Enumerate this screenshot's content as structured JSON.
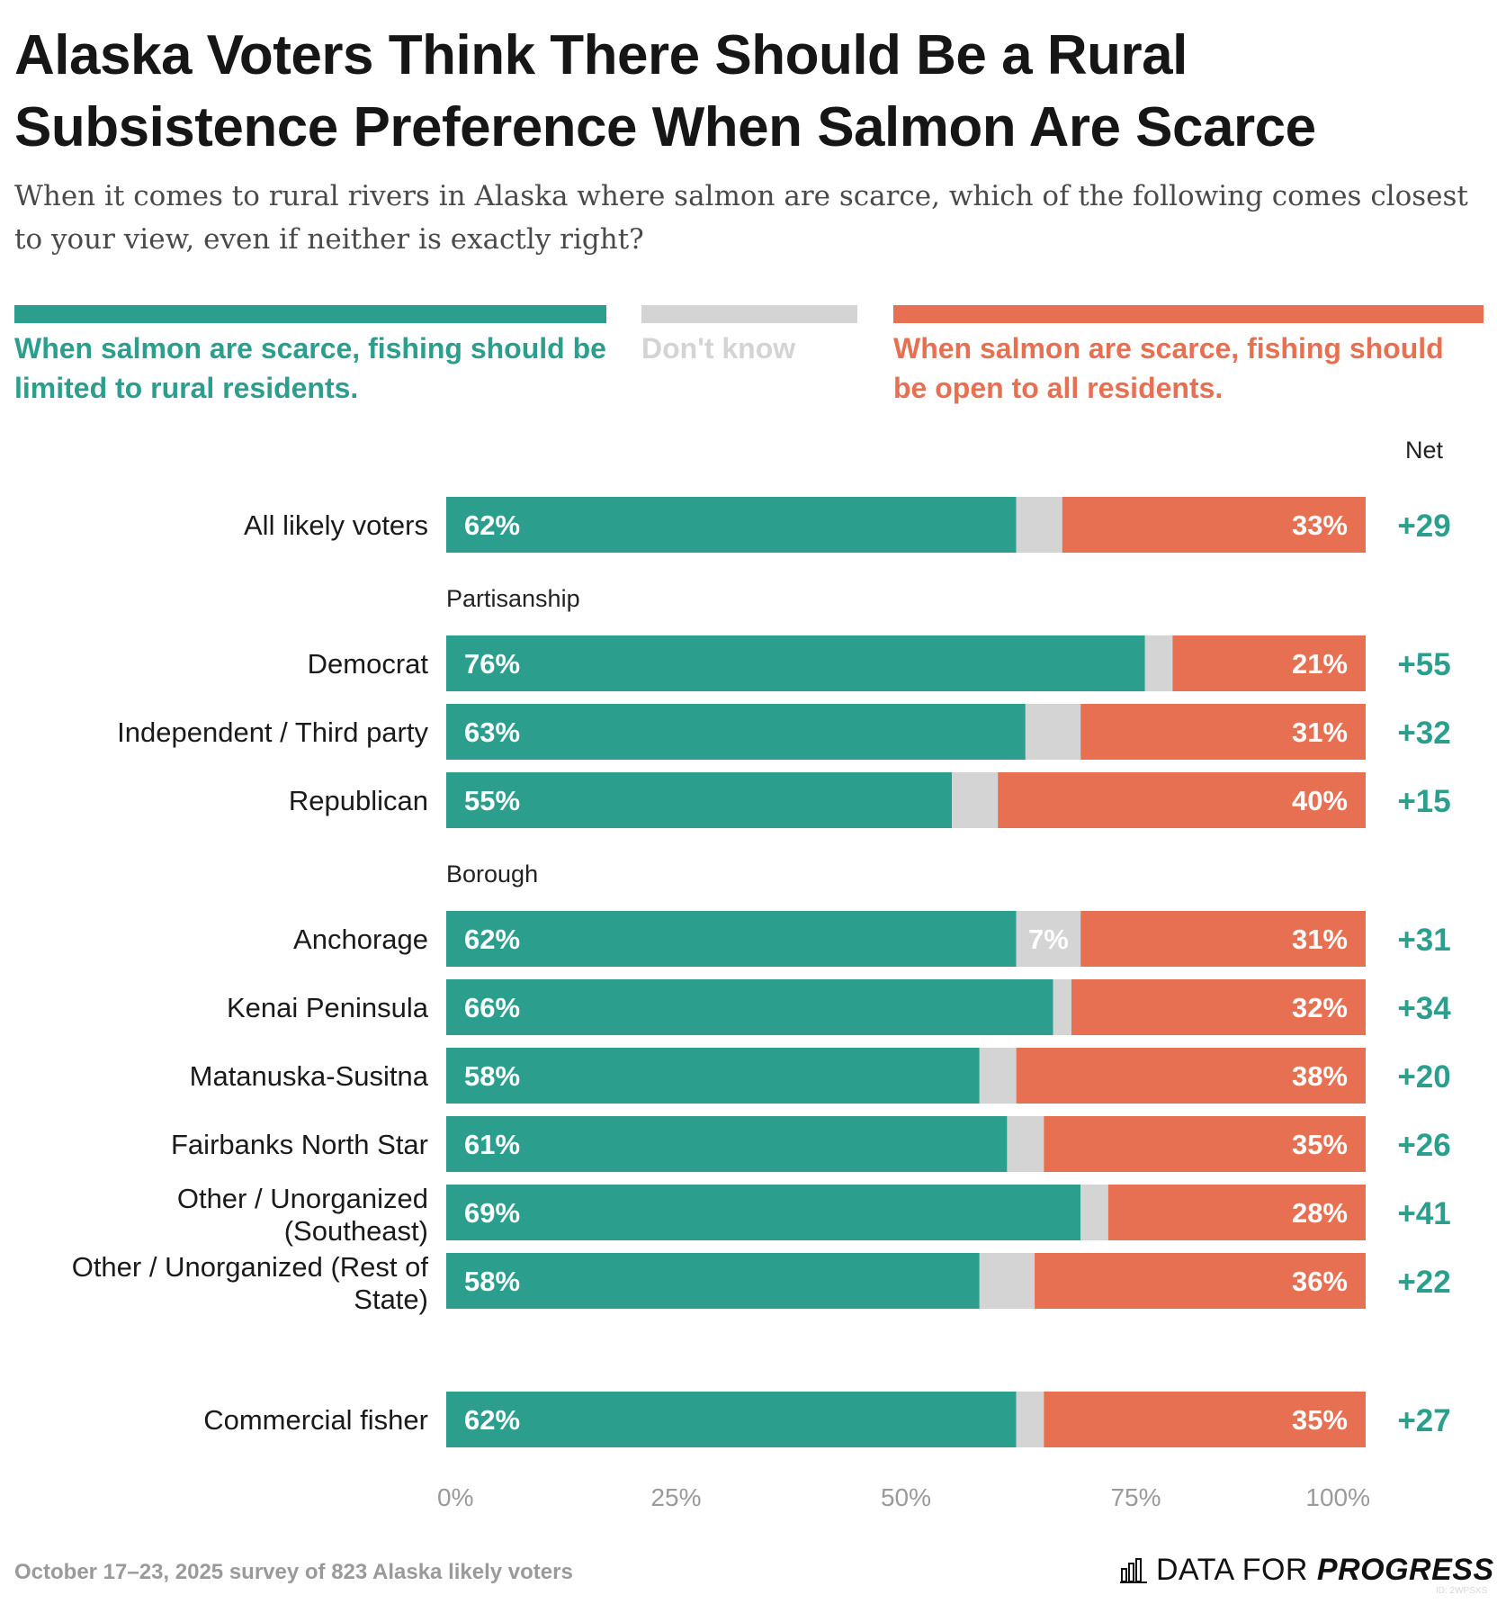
{
  "title": "Alaska Voters Think There Should Be a Rural Subsistence Preference When Salmon Are Scarce",
  "subtitle": "When it comes to rural rivers in Alaska where salmon are scarce, which of the following comes closest to your view, even if neither is exactly right?",
  "legend": {
    "limited": "When salmon are scarce, fishing should be limited to rural residents.",
    "dont_know": "Don't know",
    "open": "When salmon are scarce, fishing should be open to all residents."
  },
  "colors": {
    "limited": "#2b9e8e",
    "dont_know": "#d4d4d4",
    "open": "#e77052",
    "net": "#2b9e8e"
  },
  "chart_data": {
    "type": "bar",
    "orientation": "horizontal",
    "stacked": true,
    "net_header": "Net",
    "xlim": [
      0,
      100
    ],
    "x_ticks": [
      "0%",
      "25%",
      "50%",
      "75%",
      "100%"
    ],
    "series": [
      {
        "name": "When salmon are scarce, fishing should be limited to rural residents."
      },
      {
        "name": "Don't know"
      },
      {
        "name": "When salmon are scarce, fishing should be open to all residents."
      }
    ],
    "groups": [
      {
        "label": "",
        "rows": [
          {
            "label": "All likely voters",
            "limited": 62,
            "limited_label": "62%",
            "dont_know": 5,
            "dont_know_label": "",
            "open": 33,
            "open_label": "33%",
            "net": "+29"
          }
        ]
      },
      {
        "label": "Partisanship",
        "rows": [
          {
            "label": "Democrat",
            "limited": 76,
            "limited_label": "76%",
            "dont_know": 3,
            "dont_know_label": "",
            "open": 21,
            "open_label": "21%",
            "net": "+55"
          },
          {
            "label": "Independent / Third party",
            "limited": 63,
            "limited_label": "63%",
            "dont_know": 6,
            "dont_know_label": "",
            "open": 31,
            "open_label": "31%",
            "net": "+32"
          },
          {
            "label": "Republican",
            "limited": 55,
            "limited_label": "55%",
            "dont_know": 5,
            "dont_know_label": "",
            "open": 40,
            "open_label": "40%",
            "net": "+15"
          }
        ]
      },
      {
        "label": "Borough",
        "rows": [
          {
            "label": "Anchorage",
            "limited": 62,
            "limited_label": "62%",
            "dont_know": 7,
            "dont_know_label": "7%",
            "open": 31,
            "open_label": "31%",
            "net": "+31"
          },
          {
            "label": "Kenai Peninsula",
            "limited": 66,
            "limited_label": "66%",
            "dont_know": 2,
            "dont_know_label": "",
            "open": 32,
            "open_label": "32%",
            "net": "+34"
          },
          {
            "label": "Matanuska-Susitna",
            "limited": 58,
            "limited_label": "58%",
            "dont_know": 4,
            "dont_know_label": "",
            "open": 38,
            "open_label": "38%",
            "net": "+20"
          },
          {
            "label": "Fairbanks North Star",
            "limited": 61,
            "limited_label": "61%",
            "dont_know": 4,
            "dont_know_label": "",
            "open": 35,
            "open_label": "35%",
            "net": "+26"
          },
          {
            "label": "Other / Unorganized (Southeast)",
            "label_lines": [
              "Other / Unorganized",
              "(Southeast)"
            ],
            "limited": 69,
            "limited_label": "69%",
            "dont_know": 3,
            "dont_know_label": "",
            "open": 28,
            "open_label": "28%",
            "net": "+41"
          },
          {
            "label": "Other / Unorganized (Rest of State)",
            "label_lines": [
              "Other / Unorganized (Rest of",
              "State)"
            ],
            "limited": 58,
            "limited_label": "58%",
            "dont_know": 6,
            "dont_know_label": "",
            "open": 36,
            "open_label": "36%",
            "net": "+22"
          }
        ]
      },
      {
        "label": "",
        "rows": [
          {
            "label": "Commercial fisher",
            "limited": 62,
            "limited_label": "62%",
            "dont_know": 3,
            "dont_know_label": "",
            "open": 35,
            "open_label": "35%",
            "net": "+27"
          }
        ]
      }
    ]
  },
  "footer": {
    "note": "October 17–23, 2025 survey of 823 Alaska likely voters",
    "brand_plain": "DATA FOR ",
    "brand_strong": "PROGRESS",
    "brand_id": "ID: 2WPSXS"
  }
}
